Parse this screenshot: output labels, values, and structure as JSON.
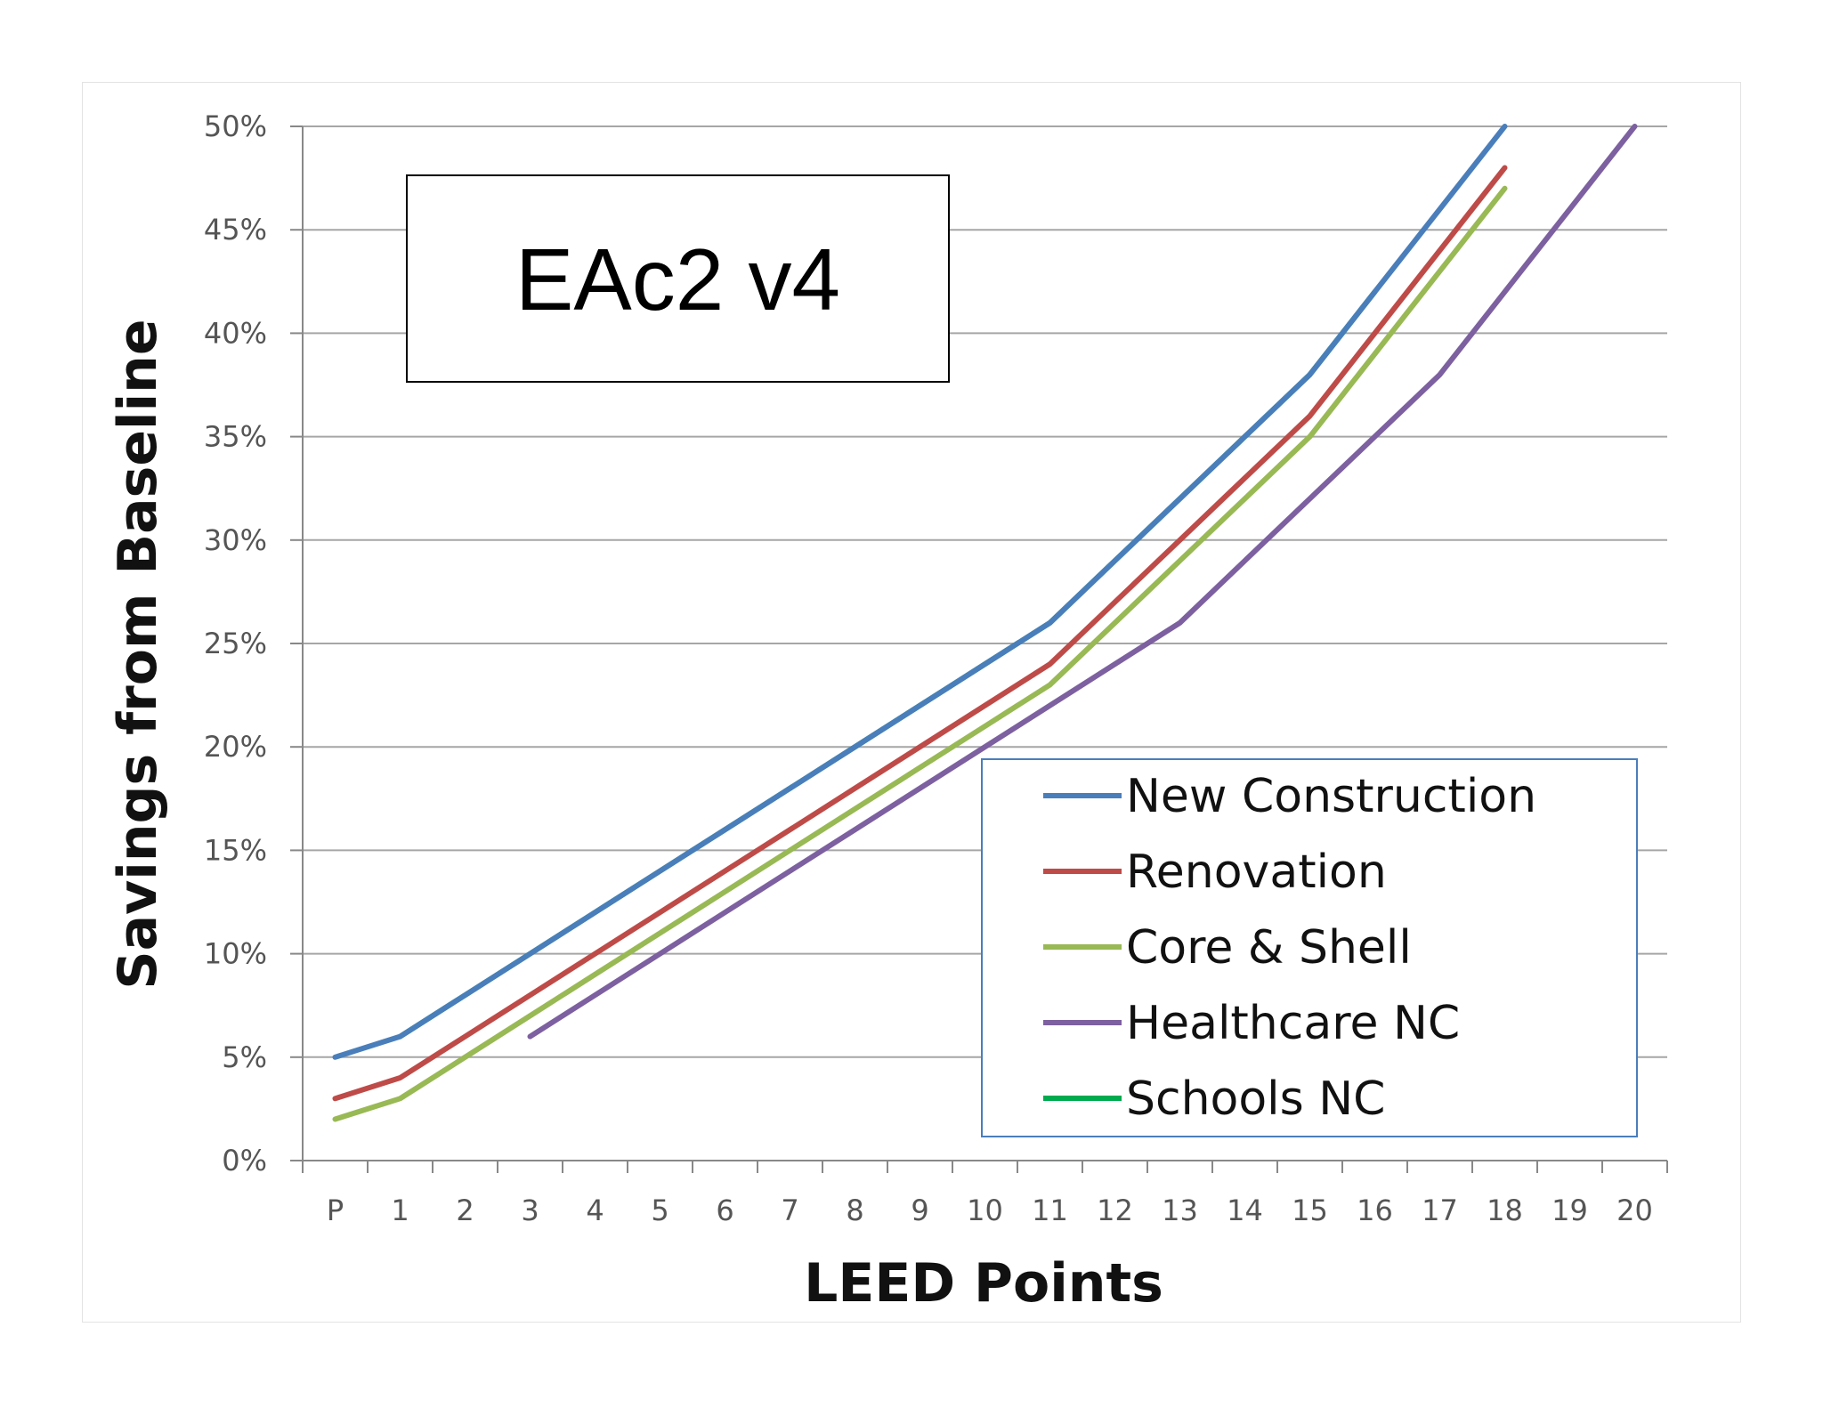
{
  "chart_data": {
    "type": "line",
    "title": "EAc2 v4",
    "xlabel": "LEED Points",
    "ylabel": "Savings from Baseline",
    "categories": [
      "P",
      "1",
      "2",
      "3",
      "4",
      "5",
      "6",
      "7",
      "8",
      "9",
      "10",
      "11",
      "12",
      "13",
      "14",
      "15",
      "16",
      "17",
      "18",
      "19",
      "20"
    ],
    "ylim": [
      0,
      50
    ],
    "yticks": [
      0,
      5,
      10,
      15,
      20,
      25,
      30,
      35,
      40,
      45,
      50
    ],
    "ytick_labels": [
      "0%",
      "5%",
      "10%",
      "15%",
      "20%",
      "25%",
      "30%",
      "35%",
      "40%",
      "45%",
      "50%"
    ],
    "grid": true,
    "legend_position": "bottom-right",
    "series": [
      {
        "name": "New Construction",
        "color": "#4A7EBB",
        "values": [
          5,
          6,
          8,
          10,
          12,
          14,
          16,
          18,
          20,
          22,
          24,
          26,
          29,
          32,
          35,
          38,
          42,
          46,
          50,
          null,
          null
        ]
      },
      {
        "name": "Renovation",
        "color": "#BE4B48",
        "values": [
          3,
          4,
          6,
          8,
          10,
          12,
          14,
          16,
          18,
          20,
          22,
          24,
          27,
          30,
          33,
          36,
          40,
          44,
          48,
          null,
          null
        ]
      },
      {
        "name": "Core & Shell",
        "color": "#98B954",
        "values": [
          2,
          3,
          5,
          7,
          9,
          11,
          13,
          15,
          17,
          19,
          21,
          23,
          26,
          29,
          32,
          35,
          39,
          43,
          47,
          null,
          null
        ]
      },
      {
        "name": "Healthcare NC",
        "color": "#7D60A0",
        "values": [
          null,
          null,
          null,
          6,
          8,
          10,
          12,
          14,
          16,
          18,
          20,
          22,
          24,
          26,
          29,
          32,
          35,
          38,
          42,
          46,
          50
        ]
      },
      {
        "name": "Schools NC",
        "color": "#00AA4F",
        "values": [
          null,
          6,
          8,
          10,
          12,
          14,
          16,
          18,
          20,
          22,
          24,
          26,
          29,
          32,
          35,
          38,
          42,
          null,
          null,
          null,
          null
        ]
      }
    ]
  }
}
